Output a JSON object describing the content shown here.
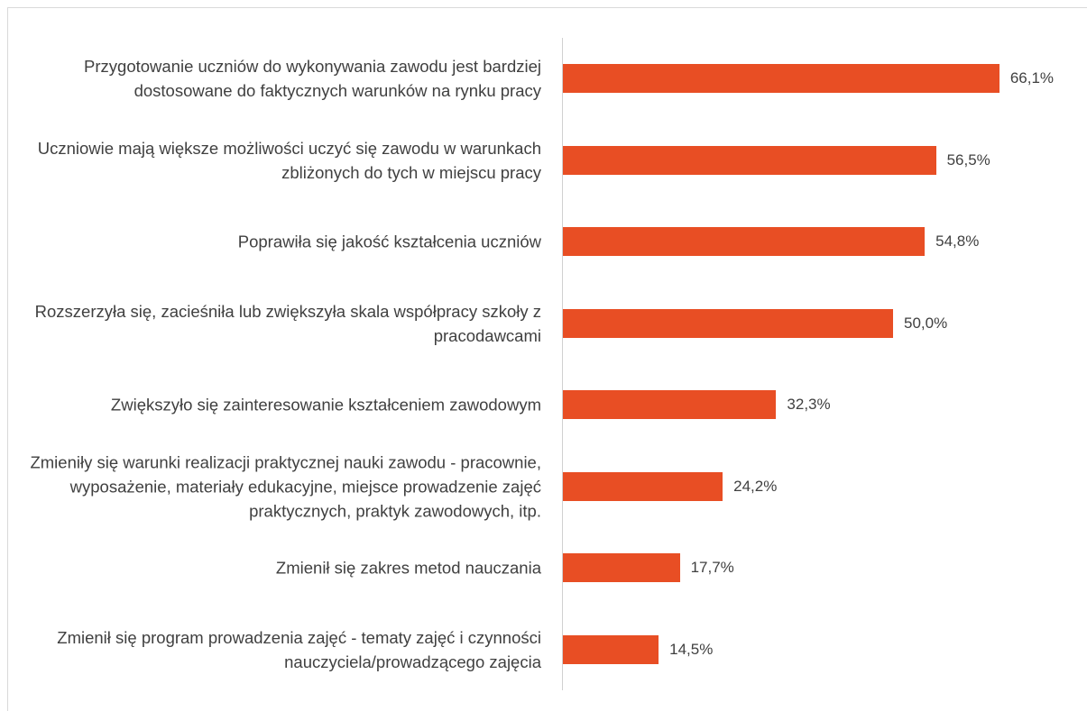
{
  "chart_data": {
    "type": "bar",
    "orientation": "horizontal",
    "categories": [
      "Przygotowanie uczniów do wykonywania zawodu jest bardziej dostosowane do faktycznych warunków na rynku pracy",
      "Uczniowie mają większe możliwości uczyć się zawodu w warunkach zbliżonych do tych w miejscu pracy",
      "Poprawiła się jakość kształcenia uczniów",
      "Rozszerzyła się, zacieśniła lub zwiększyła skala współpracy szkoły z pracodawcami",
      "Zwiększyło się zainteresowanie kształceniem zawodowym",
      "Zmieniły się warunki realizacji praktycznej nauki zawodu - pracownie, wyposażenie, materiały edukacyjne, miejsce prowadzenie zajęć praktycznych, praktyk zawodowych, itp.",
      "Zmienił się zakres metod nauczania",
      "Zmienił się program prowadzenia zajęć - tematy zajęć i czynności nauczyciela/prowadzącego zajęcia"
    ],
    "values": [
      66.1,
      56.5,
      54.8,
      50.0,
      32.3,
      24.2,
      17.7,
      14.5
    ],
    "value_labels": [
      "66,1%",
      "56,5%",
      "54,8%",
      "50,0%",
      "32,3%",
      "24,2%",
      "17,7%",
      "14,5%"
    ],
    "color": "#e84e24"
  }
}
